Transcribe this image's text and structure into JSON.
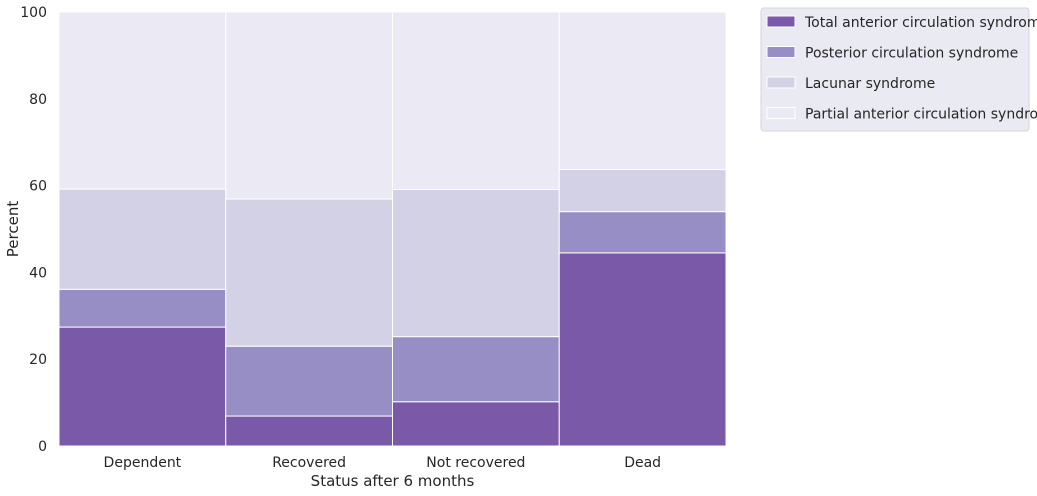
{
  "chart_data": {
    "type": "bar",
    "stacked": true,
    "title": "",
    "xlabel": "Status after 6 months",
    "ylabel": "Percent",
    "ylim": [
      0,
      100
    ],
    "yticks": [
      0,
      20,
      40,
      60,
      80,
      100
    ],
    "grid": true,
    "legend_position": "outside-top-right",
    "categories": [
      "Dependent",
      "Recovered",
      "Not recovered",
      "Dead"
    ],
    "series": [
      {
        "name": "Total anterior circulation syndrome",
        "color": "#7a59a8",
        "values": [
          27.4,
          6.9,
          10.2,
          44.5
        ]
      },
      {
        "name": "Posterior circulation syndrome",
        "color": "#968ec4",
        "values": [
          8.7,
          16.1,
          15.0,
          9.5
        ]
      },
      {
        "name": "Lacunar syndrome",
        "color": "#d3d1e6",
        "values": [
          23.1,
          33.9,
          33.9,
          9.7
        ]
      },
      {
        "name": "Partial anterior circulation syndrome",
        "color": "#ebeaf4",
        "values": [
          40.8,
          43.1,
          40.9,
          36.3
        ]
      }
    ]
  }
}
